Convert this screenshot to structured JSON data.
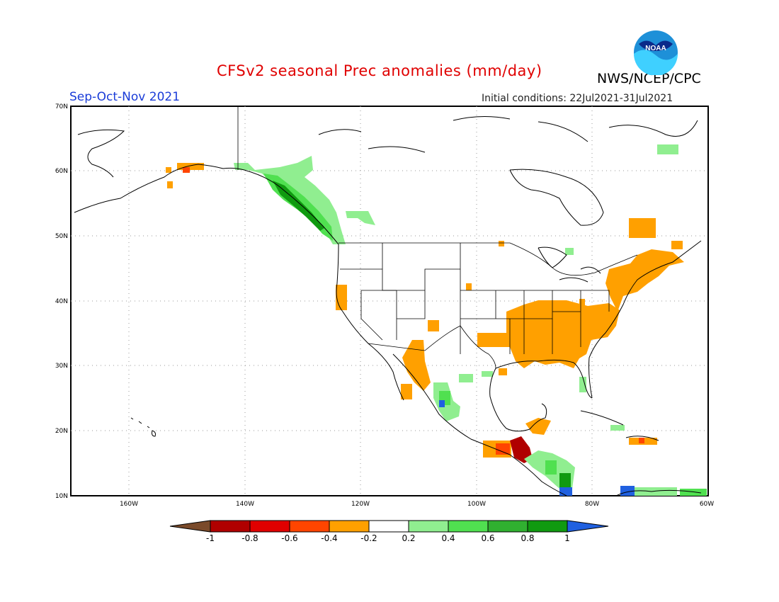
{
  "title": "CFSv2 seasonal Prec anomalies (mm/day)",
  "agency": "NWS/NCEP/CPC",
  "logo_text": "NOAA",
  "season": "Sep-Oct-Nov 2021",
  "initial_conditions": "Initial conditions: 22Jul2021-31Jul2021",
  "lat_ticks": [
    "70N",
    "60N",
    "50N",
    "40N",
    "30N",
    "20N",
    "10N"
  ],
  "lon_ticks": [
    "160W",
    "140W",
    "120W",
    "100W",
    "80W",
    "60W"
  ],
  "colorbar": {
    "labels": [
      "-1",
      "-0.8",
      "-0.6",
      "-0.4",
      "-0.2",
      "0.2",
      "0.4",
      "0.6",
      "0.8",
      "1"
    ],
    "colors": [
      "#7a4a2a",
      "#b00000",
      "#e00000",
      "#ff4500",
      "#ffa000",
      "#ffffff",
      "#90ee90",
      "#50e050",
      "#30b030",
      "#109a10",
      "#2060e0"
    ]
  },
  "chart_data": {
    "type": "heatmap",
    "title": "CFSv2 seasonal Prec anomalies (mm/day)",
    "units": "mm/day",
    "period": "Sep-Oct-Nov 2021",
    "domain": {
      "lon": [
        -170,
        -60
      ],
      "lat": [
        10,
        70
      ]
    },
    "bins": [
      -1,
      -0.8,
      -0.6,
      -0.4,
      -0.2,
      0.2,
      0.4,
      0.6,
      0.8,
      1
    ],
    "regions": [
      {
        "name": "Southeast Alaska / British Columbia coast",
        "anomaly": 0.6
      },
      {
        "name": "Western Canada interior",
        "anomaly": 0.3
      },
      {
        "name": "Southern Alaska coast",
        "anomaly": -0.3
      },
      {
        "name": "Northern California coast",
        "anomaly": -0.3
      },
      {
        "name": "Southeastern United States",
        "anomaly": -0.3
      },
      {
        "name": "Ohio / Tennessee Valley",
        "anomaly": -0.3
      },
      {
        "name": "Northeastern United States / Maritimes",
        "anomaly": -0.3
      },
      {
        "name": "Texas / Louisiana Gulf coast",
        "anomaly": -0.3
      },
      {
        "name": "Northwestern Mexico",
        "anomaly": -0.3
      },
      {
        "name": "Western Mexico (Sierra Madre)",
        "anomaly": 0.5
      },
      {
        "name": "Southern Mexico / Guatemala",
        "anomaly": -0.8
      },
      {
        "name": "Honduras / Nicaragua",
        "anomaly": 0.5
      },
      {
        "name": "South Florida",
        "anomaly": 0.3
      },
      {
        "name": "Northern Quebec",
        "anomaly": 0.3
      },
      {
        "name": "Hispaniola",
        "anomaly": -0.3
      },
      {
        "name": "Colombia / Venezuela coast",
        "anomaly": 0.5
      }
    ]
  }
}
